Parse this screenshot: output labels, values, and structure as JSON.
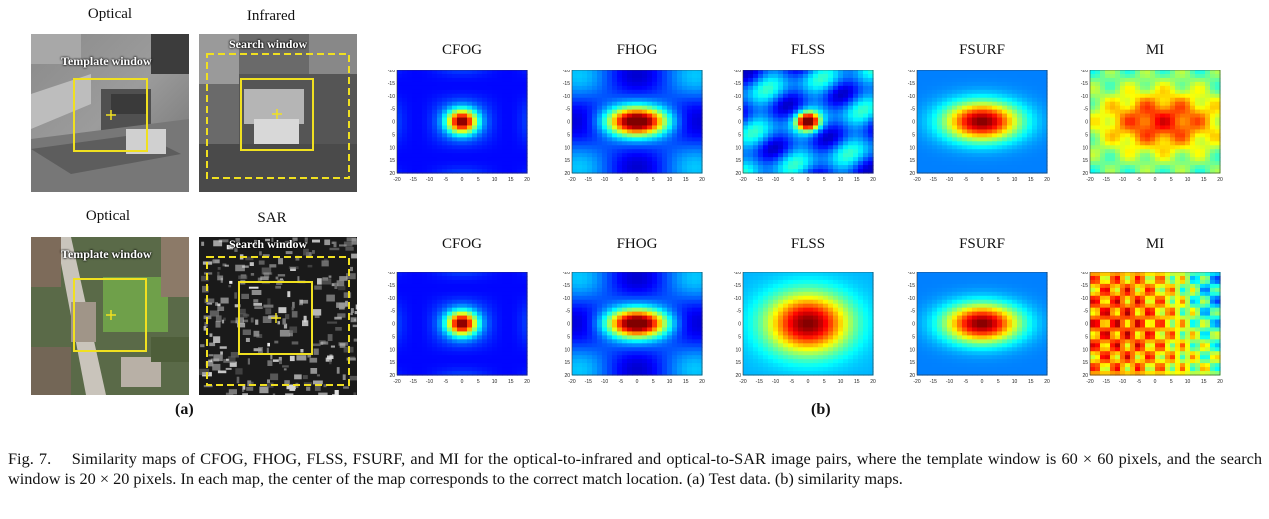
{
  "panel_a": {
    "row1": {
      "left_title": "Optical",
      "right_title": "Infrared",
      "template_label": "Template window",
      "search_label": "Search window"
    },
    "row2": {
      "left_title": "Optical",
      "right_title": "SAR",
      "template_label": "Template window",
      "search_label": "Search window"
    },
    "label": "(a)"
  },
  "panel_b": {
    "label": "(b)",
    "row1_titles": [
      "CFOG",
      "FHOG",
      "FLSS",
      "FSURF",
      "MI"
    ],
    "row2_titles": [
      "CFOG",
      "FHOG",
      "FLSS",
      "FSURF",
      "MI"
    ],
    "x_ticks": [
      "-20",
      "-15",
      "-10",
      "-5",
      "0",
      "5",
      "10",
      "15",
      "20"
    ],
    "y_ticks": [
      "-20",
      "-15",
      "-10",
      "-5",
      "0",
      "5",
      "10",
      "15",
      "20"
    ],
    "x_ticks_row2_mi": [
      "-20",
      "-15",
      "-10",
      "-5",
      "0",
      "5",
      "10",
      "15",
      "20"
    ]
  },
  "caption": {
    "fig": "Fig. 7.",
    "text": "Similarity maps of CFOG, FHOG, FLSS, FSURF, and MI for the optical-to-infrared and optical-to-SAR image pairs, where the template window is 60 × 60 pixels, and the search window is 20 × 20 pixels. In each map, the center of the map corresponds to the correct match location. (a) Test data. (b) similarity maps."
  },
  "colors": {
    "window_yellow": "#f0e020",
    "heat_low": "#00008f",
    "heat_high": "#800000"
  }
}
